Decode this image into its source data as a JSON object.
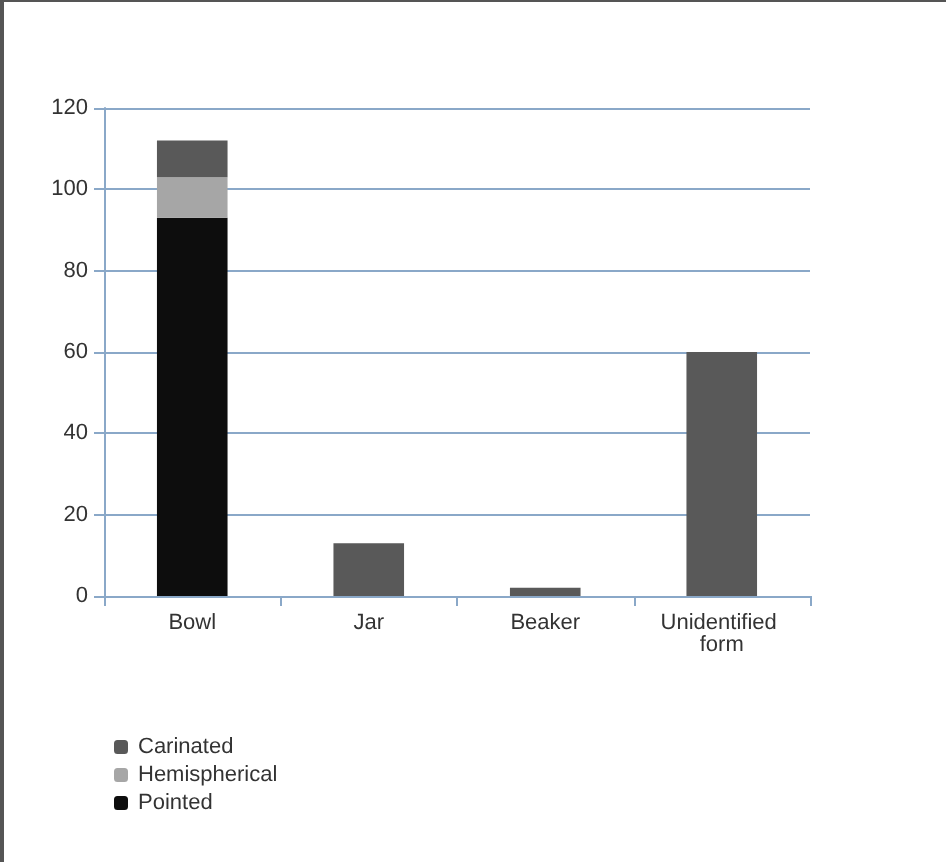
{
  "chart_data": {
    "type": "bar",
    "stacked": true,
    "categories": [
      "Bowl",
      "Jar",
      "Beaker",
      "Unidentified form"
    ],
    "series": [
      {
        "name": "Pointed",
        "color": "#0d0d0d",
        "values": [
          93,
          null,
          null,
          null
        ]
      },
      {
        "name": "Hemispherical",
        "color": "#a6a6a6",
        "values": [
          10,
          null,
          null,
          null
        ]
      },
      {
        "name": "Carinated",
        "color": "#595959",
        "values": [
          9,
          13,
          2,
          60
        ]
      }
    ],
    "ylim": [
      0,
      120
    ],
    "yticks": [
      0,
      20,
      40,
      60,
      80,
      100,
      120
    ],
    "grid": "y",
    "legend": "bottom left"
  }
}
